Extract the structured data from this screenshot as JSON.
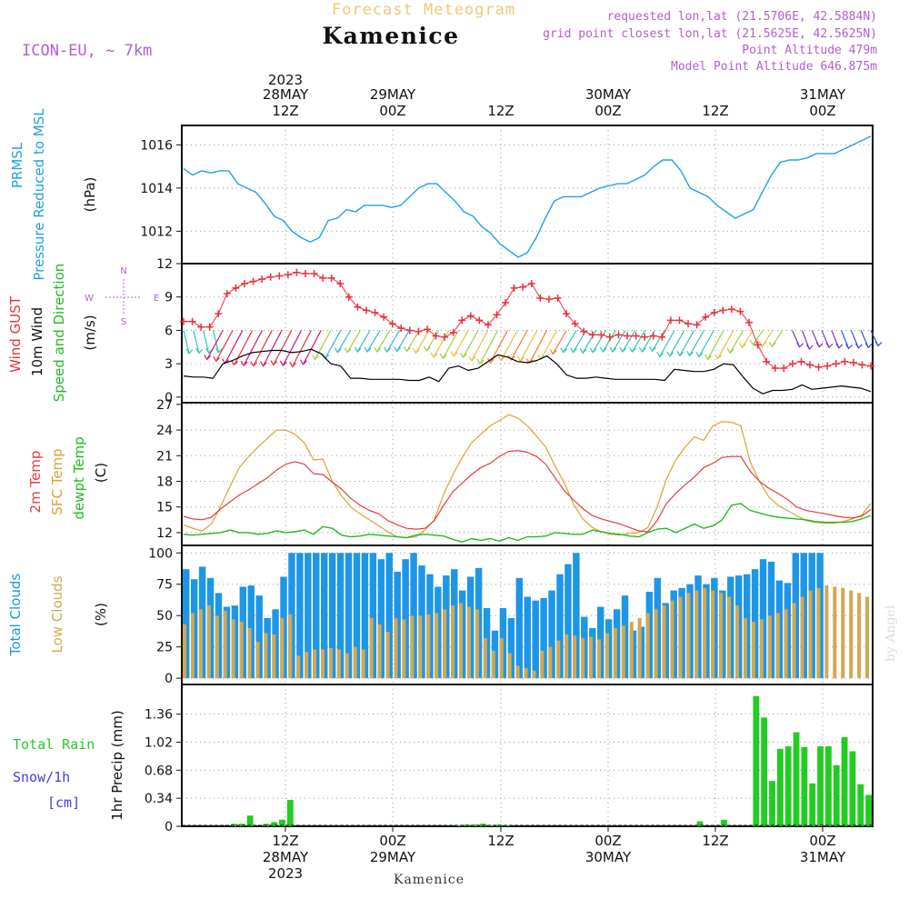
{
  "header": {
    "subtitle": "Forecast Meteogram",
    "title": "Kamenice",
    "model": "ICON-EU, ~ 7km",
    "requested": "requested lon,lat (21.5706E, 42.5884N)",
    "gridpoint": "grid point closest lon,lat (21.5625E, 42.5625N)",
    "altitude": "Point Altitude 479m",
    "model_altitude": "Model Point Altitude 646.875m"
  },
  "footer": {
    "location": "Kamenice",
    "watermark": "by Angel"
  },
  "colors": {
    "pressure": "#1ea0e8",
    "gust": "#e8323c",
    "wind": "#000000",
    "temp": "#e83c3c",
    "sfc": "#e0a030",
    "dewpt": "#22bb22",
    "total_clouds": "#1e96e6",
    "low_clouds": "#d2a852",
    "rain": "#22cc22",
    "snow": "#4040e0",
    "purple": "#b060d0"
  },
  "chart_data": [
    {
      "type": "line",
      "panel": "pressure",
      "ylabel_lines": [
        "PRMSL",
        "Pressure Reduced to MSL",
        "(hPa)"
      ],
      "ylim": [
        1010.5,
        1016.9
      ],
      "yticks": [
        "1012",
        "1014",
        "1016"
      ],
      "grid": true,
      "series": [
        {
          "name": "PRMSL",
          "values": [
            1014.9,
            1014.6,
            1014.8,
            1014.7,
            1014.8,
            1014.8,
            1014.2,
            1014.0,
            1013.8,
            1013.3,
            1012.7,
            1012.5,
            1012.0,
            1011.7,
            1011.5,
            1011.7,
            1012.5,
            1012.6,
            1013.0,
            1012.9,
            1013.2,
            1013.2,
            1013.2,
            1013.1,
            1013.2,
            1013.6,
            1014.0,
            1014.2,
            1014.2,
            1013.8,
            1013.4,
            1012.9,
            1012.7,
            1012.2,
            1011.9,
            1011.4,
            1011.1,
            1010.8,
            1011.0,
            1011.7,
            1012.6,
            1013.4,
            1013.6,
            1013.6,
            1013.6,
            1013.8,
            1014.0,
            1014.1,
            1014.2,
            1014.2,
            1014.4,
            1014.6,
            1015.0,
            1015.3,
            1015.3,
            1014.8,
            1014.0,
            1013.8,
            1013.6,
            1013.2,
            1012.9,
            1012.6,
            1012.8,
            1013.0,
            1013.8,
            1014.6,
            1015.2,
            1015.3,
            1015.3,
            1015.4,
            1015.6,
            1015.6,
            1015.6,
            1015.8,
            1016.0,
            1016.2,
            1016.4
          ]
        }
      ]
    },
    {
      "type": "line",
      "panel": "wind",
      "ylabel_lines": [
        "Wind GUST",
        "10m Wind",
        "Speed and Direction",
        "(m/s)"
      ],
      "ylim": [
        -0.5,
        12
      ],
      "yticks": [
        "0",
        "3",
        "6",
        "9",
        "12"
      ],
      "grid": true,
      "compass": [
        "N",
        "S",
        "E",
        "W"
      ],
      "series": [
        {
          "name": "Wind GUST",
          "values": [
            6.8,
            6.8,
            6.3,
            6.3,
            7.5,
            9.3,
            9.8,
            10.2,
            10.4,
            10.6,
            10.8,
            10.9,
            11.0,
            11.2,
            11.1,
            11.1,
            10.7,
            10.7,
            10.2,
            9.0,
            8.1,
            7.8,
            7.6,
            7.2,
            6.6,
            6.2,
            6.0,
            5.9,
            6.1,
            5.5,
            5.4,
            5.8,
            6.9,
            7.3,
            6.9,
            6.5,
            7.4,
            8.5,
            9.8,
            9.9,
            10.2,
            8.9,
            8.8,
            8.9,
            7.5,
            6.6,
            5.9,
            5.6,
            5.6,
            5.4,
            5.6,
            5.5,
            5.5,
            5.4,
            5.5,
            5.4,
            6.9,
            6.9,
            6.6,
            6.5,
            7.2,
            7.6,
            7.8,
            7.9,
            7.7,
            6.7,
            4.7,
            3.2,
            2.6,
            2.6,
            3.0,
            3.2,
            2.9,
            2.7,
            2.8,
            3.0,
            3.2,
            3.1,
            2.9,
            2.8
          ]
        },
        {
          "name": "10m Wind",
          "values": [
            1.9,
            1.8,
            1.8,
            1.7,
            3.0,
            3.3,
            3.7,
            4.0,
            4.1,
            4.2,
            4.2,
            4.0,
            4.1,
            4.3,
            3.9,
            3.0,
            2.8,
            1.7,
            1.7,
            1.6,
            1.6,
            1.6,
            1.6,
            1.5,
            1.5,
            1.8,
            1.4,
            2.6,
            2.8,
            2.4,
            2.6,
            3.2,
            3.8,
            3.6,
            3.2,
            3.1,
            3.3,
            3.7,
            3.0,
            2.0,
            1.7,
            1.7,
            1.8,
            1.7,
            1.6,
            1.6,
            1.6,
            1.6,
            1.6,
            1.5,
            2.5,
            2.4,
            2.3,
            2.3,
            2.5,
            3.0,
            2.9,
            1.8,
            0.8,
            0.3,
            0.6,
            0.6,
            0.7,
            1.1,
            0.7,
            0.8,
            0.9,
            1.0,
            0.9,
            0.8,
            0.5
          ]
        }
      ]
    },
    {
      "type": "line",
      "panel": "temperature",
      "ylabel_lines": [
        "2m Temp",
        "SFC Temp",
        "dewpt Temp",
        "(C)"
      ],
      "ylim": [
        10.5,
        27.2
      ],
      "yticks": [
        "12",
        "15",
        "18",
        "21",
        "24",
        "27"
      ],
      "grid": true,
      "series": [
        {
          "name": "2m Temp",
          "values": [
            13.9,
            13.6,
            13.5,
            13.8,
            14.8,
            15.6,
            16.4,
            17.0,
            17.7,
            18.4,
            19.3,
            20.0,
            20.3,
            20.0,
            18.9,
            18.8,
            17.9,
            17.1,
            16.0,
            15.2,
            14.6,
            14.2,
            13.4,
            12.9,
            12.5,
            12.4,
            12.5,
            13.4,
            15.2,
            16.8,
            17.8,
            18.8,
            19.6,
            20.1,
            20.9,
            21.5,
            21.6,
            21.4,
            20.9,
            20.0,
            18.4,
            16.9,
            15.8,
            14.8,
            14.0,
            13.6,
            13.3,
            13.0,
            12.6,
            12.2,
            12.1,
            13.4,
            15.4,
            16.6,
            17.6,
            18.5,
            19.6,
            20.1,
            20.8,
            20.9,
            20.9,
            19.2,
            18.0,
            17.2,
            16.6,
            15.9,
            15.0,
            14.6,
            14.4,
            14.2,
            14.0,
            13.8,
            13.7,
            13.9,
            14.7
          ]
        },
        {
          "name": "SFC Temp",
          "values": [
            12.9,
            12.5,
            12.2,
            13.0,
            15.1,
            17.4,
            19.6,
            20.9,
            22.0,
            23.0,
            24.0,
            24.0,
            23.5,
            22.5,
            20.5,
            20.6,
            18.0,
            16.3,
            15.0,
            14.2,
            13.5,
            12.8,
            12.1,
            11.5,
            11.4,
            11.5,
            12.3,
            13.5,
            16.5,
            18.8,
            20.8,
            22.5,
            23.5,
            24.5,
            25.1,
            25.8,
            25.4,
            24.5,
            23.3,
            22.0,
            19.8,
            17.8,
            15.3,
            13.6,
            12.6,
            12.1,
            11.8,
            11.7,
            11.9,
            12.0,
            12.6,
            15.0,
            18.3,
            20.5,
            22.0,
            23.2,
            22.8,
            24.5,
            25.0,
            24.9,
            24.5,
            20.3,
            18.0,
            16.2,
            15.2,
            14.6,
            14.0,
            13.4,
            13.2,
            13.1,
            13.1,
            13.3,
            13.6,
            14.0,
            15.4
          ]
        },
        {
          "name": "dewpt Temp",
          "values": [
            11.8,
            11.7,
            11.8,
            11.9,
            12.0,
            12.3,
            12.0,
            12.0,
            11.8,
            11.9,
            12.2,
            12.0,
            12.1,
            12.3,
            11.8,
            12.7,
            12.5,
            11.7,
            11.5,
            11.6,
            11.8,
            11.7,
            11.6,
            11.5,
            11.4,
            11.7,
            11.8,
            11.7,
            11.6,
            11.2,
            10.9,
            11.3,
            11.1,
            11.3,
            11.0,
            11.4,
            11.1,
            11.5,
            11.5,
            11.6,
            12.0,
            11.9,
            11.8,
            11.8,
            12.3,
            12.1,
            11.9,
            11.8,
            11.6,
            11.5,
            12.0,
            12.4,
            12.5,
            12.0,
            12.5,
            13.0,
            12.5,
            12.8,
            13.5,
            15.2,
            15.4,
            14.6,
            14.3,
            14.0,
            13.8,
            13.7,
            13.6,
            13.5,
            13.3,
            13.2,
            13.2,
            13.2,
            13.3,
            13.6,
            14.0
          ]
        }
      ]
    },
    {
      "type": "bar",
      "panel": "clouds",
      "ylabel_lines": [
        "Total Clouds",
        "Low Clouds",
        "(%)"
      ],
      "ylim": [
        -5,
        106
      ],
      "yticks": [
        "0",
        "25",
        "50",
        "75",
        "100"
      ],
      "grid": true,
      "series": [
        {
          "name": "Total Clouds",
          "values": [
            87,
            79,
            89,
            80,
            68,
            57,
            58,
            73,
            74,
            66,
            48,
            55,
            81,
            100,
            100,
            100,
            100,
            100,
            100,
            100,
            100,
            100,
            100,
            100,
            95,
            100,
            85,
            95,
            100,
            90,
            83,
            73,
            82,
            87,
            70,
            81,
            88,
            56,
            38,
            56,
            48,
            80,
            65,
            62,
            64,
            70,
            83,
            91,
            100,
            49,
            40,
            57,
            47,
            55,
            66,
            38,
            41,
            69,
            80,
            60,
            70,
            72,
            75,
            82,
            75,
            80,
            70,
            81,
            82,
            83,
            87,
            95,
            93,
            78,
            76,
            100,
            100,
            100,
            100
          ]
        },
        {
          "name": "Low Clouds",
          "values": [
            43,
            52,
            55,
            58,
            50,
            54,
            47,
            45,
            40,
            29,
            36,
            35,
            48,
            51,
            18,
            21,
            23,
            23,
            24,
            23,
            20,
            25,
            23,
            48,
            43,
            37,
            48,
            47,
            50,
            50,
            51,
            52,
            55,
            58,
            60,
            57,
            55,
            32,
            22,
            32,
            20,
            10,
            8,
            6,
            22,
            25,
            30,
            35,
            34,
            32,
            33,
            31,
            36,
            40,
            42,
            45,
            48,
            52,
            55,
            58,
            62,
            65,
            68,
            70,
            72,
            70,
            68,
            65,
            58,
            48,
            45,
            47,
            50,
            52,
            55,
            60,
            65,
            70,
            72,
            74,
            73,
            72,
            70,
            68,
            65
          ]
        }
      ]
    },
    {
      "type": "bar",
      "panel": "precip",
      "ylabel_lines": [
        "1hr Precip (mm)"
      ],
      "legend_lines": [
        "Total  Rain",
        "Snow/1h",
        "[cm]"
      ],
      "ylim": [
        0,
        1.72
      ],
      "yticks": [
        "0",
        "0.34",
        "0.68",
        "1.02",
        "1.36"
      ],
      "grid": true,
      "series": [
        {
          "name": "Total Rain",
          "values": [
            0,
            0,
            0,
            0,
            0,
            0,
            0.03,
            0.03,
            0.13,
            0,
            0.03,
            0.05,
            0.08,
            0.32,
            0,
            0,
            0,
            0,
            0,
            0,
            0,
            0,
            0,
            0,
            0,
            0,
            0,
            0,
            0,
            0,
            0,
            0,
            0,
            0,
            0.01,
            0.02,
            0.02,
            0.03,
            0.01,
            0.02,
            0.01,
            0,
            0,
            0,
            0,
            0,
            0,
            0,
            0,
            0,
            0,
            0,
            0,
            0,
            0,
            0,
            0,
            0,
            0,
            0,
            0,
            0,
            0,
            0,
            0.06,
            0,
            0,
            0.08,
            0,
            0,
            0,
            1.58,
            1.32,
            0.55,
            0.94,
            0.97,
            1.14,
            0.96,
            0.52,
            0.97,
            0.97,
            0.74,
            1.08,
            0.91,
            0.51,
            0.38
          ]
        }
      ]
    }
  ],
  "axis": {
    "top": [
      {
        "line1": "2023",
        "line2": "28MAY",
        "line3": "12Z"
      },
      {
        "line1": "",
        "line2": "29MAY",
        "line3": "00Z"
      },
      {
        "line1": "",
        "line2": "",
        "line3": "12Z"
      },
      {
        "line1": "",
        "line2": "30MAY",
        "line3": "00Z"
      },
      {
        "line1": "",
        "line2": "",
        "line3": "12Z"
      },
      {
        "line1": "",
        "line2": "31MAY",
        "line3": "00Z"
      }
    ],
    "bottom": [
      {
        "line1": "12Z",
        "line2": "28MAY",
        "line3": "2023"
      },
      {
        "line1": "00Z",
        "line2": "29MAY",
        "line3": ""
      },
      {
        "line1": "12Z",
        "line2": "",
        "line3": ""
      },
      {
        "line1": "00Z",
        "line2": "30MAY",
        "line3": ""
      },
      {
        "line1": "12Z",
        "line2": "",
        "line3": ""
      },
      {
        "line1": "00Z",
        "line2": "31MAY",
        "line3": ""
      }
    ]
  }
}
